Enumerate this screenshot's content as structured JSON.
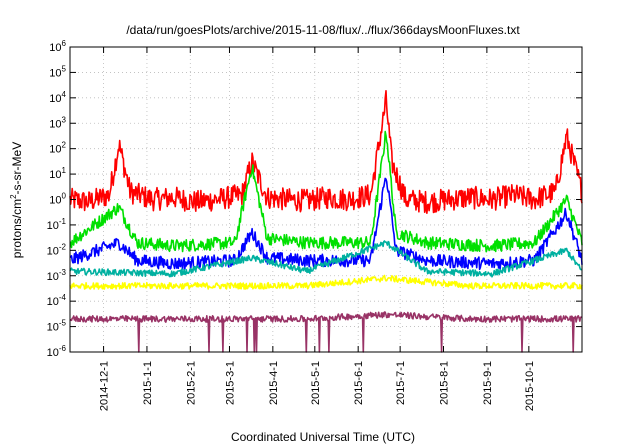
{
  "chart_data": {
    "type": "line",
    "title": "/data/run/goesPlots/archive/2015-11-08/flux/../flux/366daysMoonFluxes.txt",
    "xlabel": "Coordinated Universal Time (UTC)",
    "ylabel_parts": {
      "base": "protons/cm",
      "sup": "2",
      "rest": "-s-sr-MeV"
    },
    "x_range": [
      "2014-11-07",
      "2015-11-08"
    ],
    "x_ticks": [
      "2014-12-1",
      "2015-1-1",
      "2015-2-1",
      "2015-3-1",
      "2015-4-1",
      "2015-5-1",
      "2015-6-1",
      "2015-7-1",
      "2015-8-1",
      "2015-9-1",
      "2015-10-1"
    ],
    "y_scale": "log",
    "ylim": [
      1e-06,
      1000000.0
    ],
    "y_ticks": [
      {
        "base": "10",
        "exp": "-6"
      },
      {
        "base": "10",
        "exp": "-5"
      },
      {
        "base": "10",
        "exp": "-4"
      },
      {
        "base": "10",
        "exp": "-3"
      },
      {
        "base": "10",
        "exp": "-2"
      },
      {
        "base": "10",
        "exp": "-1"
      },
      {
        "base": "10",
        "exp": "0"
      },
      {
        "base": "10",
        "exp": "1"
      },
      {
        "base": "10",
        "exp": "2"
      },
      {
        "base": "10",
        "exp": "3"
      },
      {
        "base": "10",
        "exp": "4"
      },
      {
        "base": "10",
        "exp": "5"
      },
      {
        "base": "10",
        "exp": "6"
      }
    ],
    "grid": true,
    "series": [
      {
        "color": "#ff0000",
        "points": [
          [
            "2014-11-07",
            1.0
          ],
          [
            "2014-11-20",
            0.8
          ],
          [
            "2014-12-05",
            1.5
          ],
          [
            "2014-12-12",
            150
          ],
          [
            "2014-12-20",
            2.0
          ],
          [
            "2015-01-05",
            1.0
          ],
          [
            "2015-01-20",
            1.2
          ],
          [
            "2015-02-05",
            0.8
          ],
          [
            "2015-02-20",
            1.0
          ],
          [
            "2015-03-10",
            1.5
          ],
          [
            "2015-03-17",
            30
          ],
          [
            "2015-03-28",
            1.2
          ],
          [
            "2015-04-10",
            1.0
          ],
          [
            "2015-04-25",
            0.9
          ],
          [
            "2015-05-10",
            1.2
          ],
          [
            "2015-05-25",
            1.0
          ],
          [
            "2015-06-10",
            1.5
          ],
          [
            "2015-06-21",
            8000
          ],
          [
            "2015-06-25",
            30
          ],
          [
            "2015-07-05",
            1.0
          ],
          [
            "2015-07-20",
            0.8
          ],
          [
            "2015-08-05",
            1.0
          ],
          [
            "2015-08-20",
            1.2
          ],
          [
            "2015-09-05",
            1.0
          ],
          [
            "2015-09-20",
            1.5
          ],
          [
            "2015-10-05",
            1.0
          ],
          [
            "2015-10-20",
            2.0
          ],
          [
            "2015-10-28",
            300
          ],
          [
            "2015-11-08",
            2.0
          ]
        ]
      },
      {
        "color": "#00e000",
        "points": [
          [
            "2014-11-07",
            0.02
          ],
          [
            "2014-12-12",
            0.5
          ],
          [
            "2014-12-25",
            0.02
          ],
          [
            "2015-01-20",
            0.015
          ],
          [
            "2015-03-05",
            0.02
          ],
          [
            "2015-03-17",
            20
          ],
          [
            "2015-03-28",
            0.03
          ],
          [
            "2015-04-25",
            0.02
          ],
          [
            "2015-06-10",
            0.02
          ],
          [
            "2015-06-21",
            500
          ],
          [
            "2015-06-28",
            0.05
          ],
          [
            "2015-07-20",
            0.02
          ],
          [
            "2015-09-05",
            0.015
          ],
          [
            "2015-10-05",
            0.02
          ],
          [
            "2015-10-28",
            1.0
          ],
          [
            "2015-11-08",
            0.02
          ]
        ]
      },
      {
        "color": "#0000ff",
        "points": [
          [
            "2014-11-07",
            0.004
          ],
          [
            "2014-12-12",
            0.02
          ],
          [
            "2014-12-25",
            0.004
          ],
          [
            "2015-01-20",
            0.003
          ],
          [
            "2015-03-05",
            0.004
          ],
          [
            "2015-03-17",
            0.05
          ],
          [
            "2015-03-28",
            0.005
          ],
          [
            "2015-04-25",
            0.004
          ],
          [
            "2015-06-10",
            0.004
          ],
          [
            "2015-06-21",
            10
          ],
          [
            "2015-06-28",
            0.01
          ],
          [
            "2015-07-20",
            0.004
          ],
          [
            "2015-09-05",
            0.003
          ],
          [
            "2015-10-05",
            0.004
          ],
          [
            "2015-10-28",
            0.3
          ],
          [
            "2015-11-08",
            0.004
          ]
        ]
      },
      {
        "color": "#00b0a0",
        "points": [
          [
            "2014-11-07",
            0.0015
          ],
          [
            "2015-01-20",
            0.0012
          ],
          [
            "2015-03-17",
            0.005
          ],
          [
            "2015-04-25",
            0.0015
          ],
          [
            "2015-06-21",
            0.02
          ],
          [
            "2015-07-20",
            0.0015
          ],
          [
            "2015-09-05",
            0.0012
          ],
          [
            "2015-10-28",
            0.01
          ],
          [
            "2015-11-08",
            0.0015
          ]
        ]
      },
      {
        "color": "#ffff00",
        "points": [
          [
            "2014-11-07",
            0.0004
          ],
          [
            "2015-02-05",
            0.0004
          ],
          [
            "2015-04-25",
            0.0004
          ],
          [
            "2015-06-21",
            0.0008
          ],
          [
            "2015-08-20",
            0.0004
          ],
          [
            "2015-11-08",
            0.0004
          ]
        ]
      },
      {
        "color": "#993366",
        "points": [
          [
            "2014-11-07",
            2e-05
          ],
          [
            "2015-02-05",
            2e-05
          ],
          [
            "2015-04-25",
            2e-05
          ],
          [
            "2015-06-21",
            3e-05
          ],
          [
            "2015-08-20",
            2e-05
          ],
          [
            "2015-11-08",
            2e-05
          ]
        ]
      }
    ]
  }
}
